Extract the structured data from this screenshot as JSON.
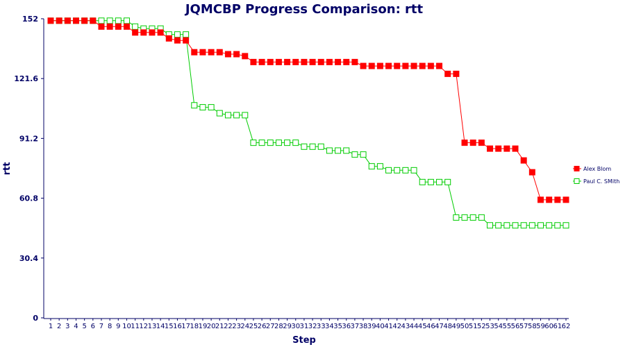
{
  "chart_data": {
    "type": "line",
    "title": "JQMCBP Progress Comparison: rtt",
    "xlabel": "Step",
    "ylabel": "rtt",
    "ylim": [
      0,
      152
    ],
    "yticks": [
      "0",
      "30.4",
      "60.8",
      "91.2",
      "121.6",
      "152"
    ],
    "x": [
      1,
      2,
      3,
      4,
      5,
      6,
      7,
      8,
      9,
      10,
      11,
      12,
      13,
      14,
      15,
      16,
      17,
      18,
      19,
      20,
      21,
      22,
      23,
      24,
      25,
      26,
      27,
      28,
      29,
      30,
      31,
      32,
      33,
      34,
      35,
      36,
      37,
      38,
      39,
      40,
      41,
      42,
      43,
      44,
      45,
      46,
      47,
      48,
      49,
      50,
      51,
      52,
      53,
      54,
      55,
      56,
      57,
      58,
      59,
      60,
      61,
      62
    ],
    "legend_position": "right",
    "series": [
      {
        "name": "Alex Blom",
        "color": "#ff0000",
        "marker": "filled-square",
        "values": [
          151,
          151,
          151,
          151,
          151,
          151,
          148,
          148,
          148,
          148,
          145,
          145,
          145,
          145,
          142,
          141,
          141,
          135,
          135,
          135,
          135,
          134,
          134,
          133,
          130,
          130,
          130,
          130,
          130,
          130,
          130,
          130,
          130,
          130,
          130,
          130,
          130,
          128,
          128,
          128,
          128,
          128,
          128,
          128,
          128,
          128,
          128,
          124,
          124,
          89,
          89,
          89,
          86,
          86,
          86,
          86,
          80,
          74,
          60,
          60,
          60,
          60
        ]
      },
      {
        "name": "Paul C. SMith",
        "color": "#00cc00",
        "marker": "hollow-square",
        "values": [
          151,
          151,
          151,
          151,
          151,
          151,
          151,
          151,
          151,
          151,
          148,
          147,
          147,
          147,
          144,
          144,
          144,
          108,
          107,
          107,
          104,
          103,
          103,
          103,
          89,
          89,
          89,
          89,
          89,
          89,
          87,
          87,
          87,
          85,
          85,
          85,
          83,
          83,
          77,
          77,
          75,
          75,
          75,
          75,
          69,
          69,
          69,
          69,
          51,
          51,
          51,
          51,
          47,
          47,
          47,
          47,
          47,
          47,
          47,
          47,
          47,
          47
        ]
      }
    ]
  }
}
